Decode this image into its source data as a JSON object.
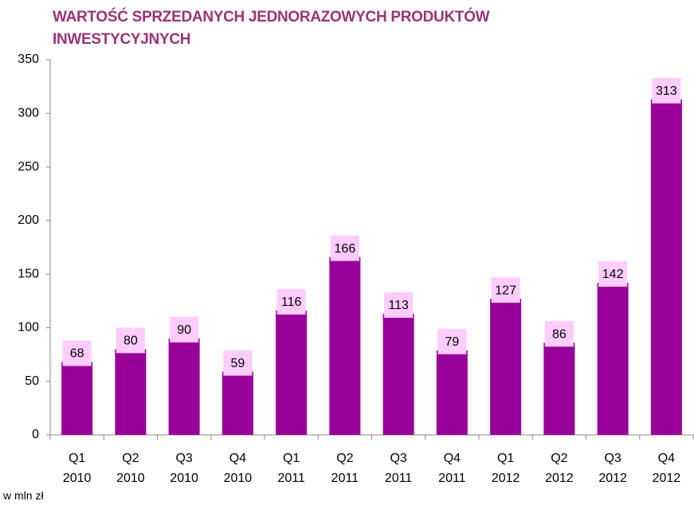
{
  "chart_data": {
    "type": "bar",
    "title": "WARTOŚĆ SPRZEDANYCH JEDNORAZOWYCH PRODUKTÓW INWESTYCYJNYCH",
    "categories": [
      [
        "Q1",
        "2010"
      ],
      [
        "Q2",
        "2010"
      ],
      [
        "Q3",
        "2010"
      ],
      [
        "Q4",
        "2010"
      ],
      [
        "Q1",
        "2011"
      ],
      [
        "Q2",
        "2011"
      ],
      [
        "Q3",
        "2011"
      ],
      [
        "Q4",
        "2011"
      ],
      [
        "Q1",
        "2012"
      ],
      [
        "Q2",
        "2012"
      ],
      [
        "Q3",
        "2012"
      ],
      [
        "Q4",
        "2012"
      ]
    ],
    "values": [
      68,
      80,
      90,
      59,
      116,
      166,
      113,
      79,
      127,
      86,
      142,
      313
    ],
    "color": "#990099",
    "label_background": "#ffccff",
    "ylim": [
      0,
      350
    ],
    "yticks": [
      0,
      50,
      100,
      150,
      200,
      250,
      300,
      350
    ],
    "note": "w mln zł"
  }
}
